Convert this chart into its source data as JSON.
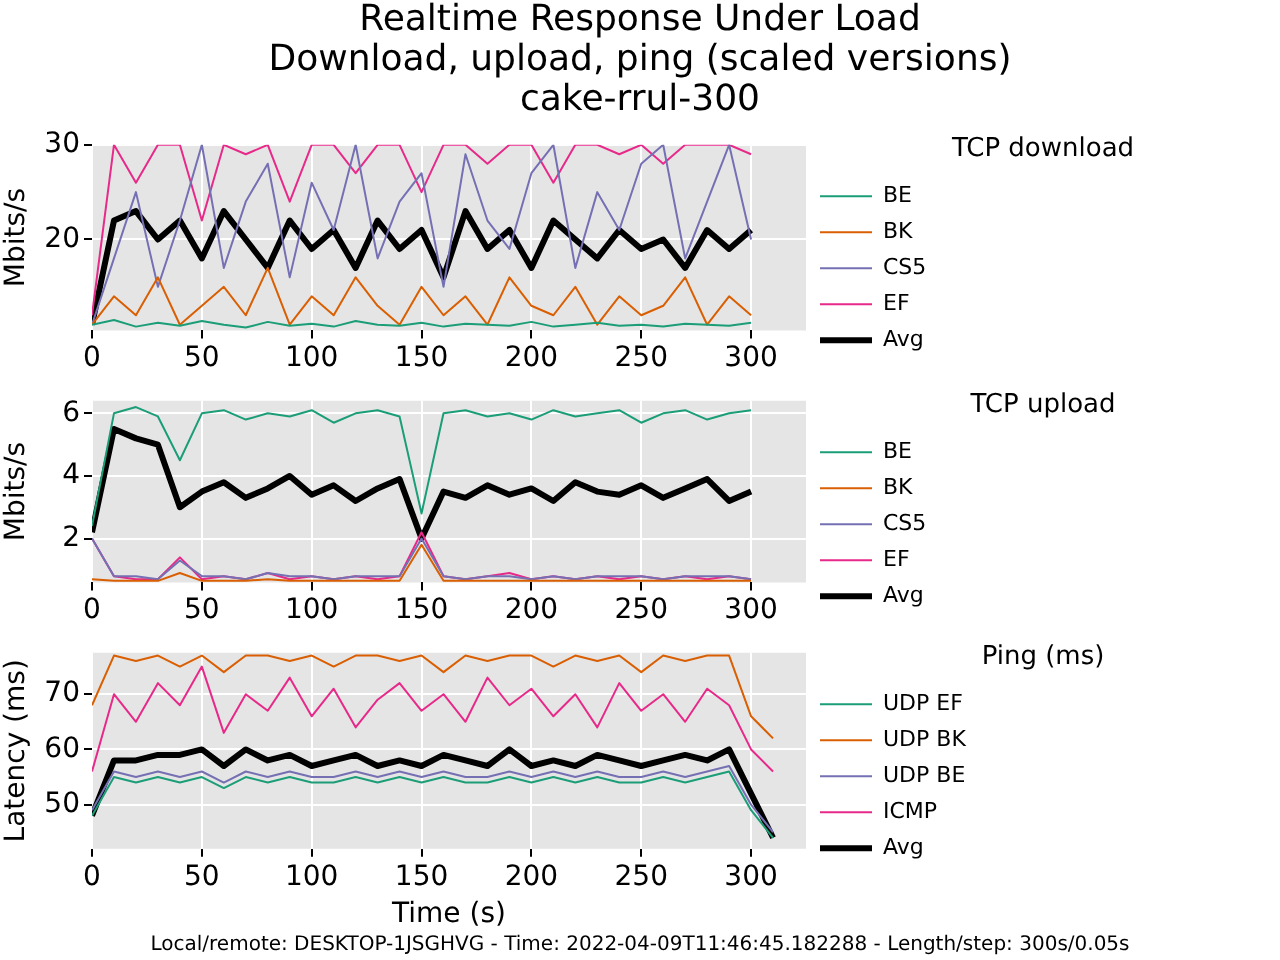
{
  "chart_data": [
    {
      "type": "line",
      "title": "Realtime Response Under Load",
      "subtitle": "Download, upload, ping (scaled versions)\ncake-rrul-300",
      "ylabel": "Mbits/s",
      "legend_title": "TCP download",
      "legend": "right",
      "grid": true,
      "x": [
        0,
        10,
        20,
        30,
        40,
        50,
        60,
        70,
        80,
        90,
        100,
        110,
        120,
        130,
        140,
        150,
        160,
        170,
        180,
        190,
        200,
        210,
        220,
        230,
        240,
        250,
        260,
        270,
        280,
        290,
        300
      ],
      "xlim": [
        0,
        325
      ],
      "xticks": [
        0,
        50,
        100,
        150,
        200,
        250,
        300
      ],
      "ylim": [
        10.4,
        30
      ],
      "yticks": [
        20,
        30
      ],
      "series": [
        {
          "name": "BE",
          "color": "#1b9e77",
          "values": [
            11,
            11.5,
            10.8,
            11.2,
            10.9,
            11.4,
            11,
            10.7,
            11.3,
            10.9,
            11.1,
            10.8,
            11.4,
            11,
            10.9,
            11.2,
            10.8,
            11.1,
            11,
            10.9,
            11.3,
            10.8,
            11,
            11.2,
            10.9,
            11,
            10.8,
            11.1,
            11,
            10.9,
            11.2
          ]
        },
        {
          "name": "BK",
          "color": "#d95f02",
          "values": [
            11,
            14,
            12,
            16,
            11,
            13,
            15,
            12,
            17,
            11,
            14,
            12,
            16,
            13,
            11,
            15,
            12,
            14,
            11,
            16,
            13,
            12,
            15,
            11,
            14,
            12,
            13,
            16,
            11,
            14,
            12
          ]
        },
        {
          "name": "CS5",
          "color": "#7570b3",
          "values": [
            11,
            18,
            25,
            15,
            22,
            30,
            17,
            24,
            28,
            16,
            26,
            21,
            30,
            18,
            24,
            27,
            15,
            29,
            22,
            19,
            27,
            30,
            17,
            25,
            21,
            28,
            30,
            18,
            24,
            30,
            20
          ]
        },
        {
          "name": "EF",
          "color": "#e7298a",
          "values": [
            12,
            30,
            26,
            30,
            30,
            22,
            30,
            29,
            30,
            24,
            30,
            30,
            27,
            30,
            30,
            25,
            30,
            30,
            28,
            30,
            30,
            26,
            30,
            30,
            29,
            30,
            28,
            30,
            30,
            30,
            29
          ]
        },
        {
          "name": "Avg",
          "color": "#000000",
          "values": [
            11,
            22,
            23,
            20,
            22,
            18,
            23,
            20,
            17,
            22,
            19,
            21,
            17,
            22,
            19,
            21,
            16,
            23,
            19,
            21,
            17,
            22,
            20,
            18,
            21,
            19,
            20,
            17,
            21,
            19,
            21
          ]
        }
      ]
    },
    {
      "type": "line",
      "ylabel": "Mbits/s",
      "legend_title": "TCP upload",
      "legend": "right",
      "grid": true,
      "x": [
        0,
        10,
        20,
        30,
        40,
        50,
        60,
        70,
        80,
        90,
        100,
        110,
        120,
        130,
        140,
        150,
        160,
        170,
        180,
        190,
        200,
        210,
        220,
        230,
        240,
        250,
        260,
        270,
        280,
        290,
        300
      ],
      "xlim": [
        0,
        325
      ],
      "xticks": [
        0,
        50,
        100,
        150,
        200,
        250,
        300
      ],
      "ylim": [
        0.6,
        6.4
      ],
      "yticks": [
        2,
        4,
        6
      ],
      "series": [
        {
          "name": "BE",
          "color": "#1b9e77",
          "values": [
            2.4,
            6.0,
            6.2,
            5.9,
            4.5,
            6.0,
            6.1,
            5.8,
            6.0,
            5.9,
            6.1,
            5.7,
            6.0,
            6.1,
            5.9,
            2.8,
            6.0,
            6.1,
            5.9,
            6.0,
            5.8,
            6.1,
            5.9,
            6.0,
            6.1,
            5.7,
            6.0,
            6.1,
            5.8,
            6.0,
            6.1
          ]
        },
        {
          "name": "BK",
          "color": "#d95f02",
          "values": [
            0.7,
            0.65,
            0.65,
            0.65,
            0.9,
            0.65,
            0.65,
            0.65,
            0.7,
            0.65,
            0.65,
            0.65,
            0.65,
            0.65,
            0.65,
            1.8,
            0.65,
            0.65,
            0.65,
            0.65,
            0.65,
            0.65,
            0.65,
            0.65,
            0.65,
            0.65,
            0.65,
            0.65,
            0.65,
            0.65,
            0.65
          ]
        },
        {
          "name": "CS5",
          "color": "#7570b3",
          "values": [
            2.0,
            0.8,
            0.8,
            0.7,
            1.3,
            0.8,
            0.8,
            0.7,
            0.9,
            0.8,
            0.8,
            0.7,
            0.8,
            0.8,
            0.8,
            2.0,
            0.8,
            0.7,
            0.8,
            0.8,
            0.7,
            0.8,
            0.7,
            0.8,
            0.8,
            0.8,
            0.7,
            0.8,
            0.8,
            0.8,
            0.7
          ]
        },
        {
          "name": "EF",
          "color": "#e7298a",
          "values": [
            2.0,
            0.8,
            0.7,
            0.7,
            1.4,
            0.7,
            0.8,
            0.7,
            0.9,
            0.7,
            0.8,
            0.7,
            0.8,
            0.7,
            0.8,
            2.2,
            0.8,
            0.7,
            0.8,
            0.9,
            0.7,
            0.8,
            0.7,
            0.8,
            0.7,
            0.8,
            0.7,
            0.8,
            0.7,
            0.8,
            0.7
          ]
        },
        {
          "name": "Avg",
          "color": "#000000",
          "values": [
            2.2,
            5.5,
            5.2,
            5.0,
            3.0,
            3.5,
            3.8,
            3.3,
            3.6,
            4.0,
            3.4,
            3.7,
            3.2,
            3.6,
            3.9,
            2.0,
            3.5,
            3.3,
            3.7,
            3.4,
            3.6,
            3.2,
            3.8,
            3.5,
            3.4,
            3.7,
            3.3,
            3.6,
            3.9,
            3.2,
            3.5
          ]
        }
      ]
    },
    {
      "type": "line",
      "xlabel": "Time (s)",
      "ylabel": "Latency (ms)",
      "legend_title": "Ping (ms)",
      "legend": "right",
      "grid": true,
      "x": [
        0,
        10,
        20,
        30,
        40,
        50,
        60,
        70,
        80,
        90,
        100,
        110,
        120,
        130,
        140,
        150,
        160,
        170,
        180,
        190,
        200,
        210,
        220,
        230,
        240,
        250,
        260,
        270,
        280,
        290,
        300,
        310
      ],
      "xlim": [
        0,
        325
      ],
      "xticks": [
        0,
        50,
        100,
        150,
        200,
        250,
        300
      ],
      "ylim": [
        42,
        77.5
      ],
      "yticks": [
        50,
        60,
        70
      ],
      "annotations": [
        "Local/remote: DESKTOP-1JSGHVG - Time: 2022-04-09T11:46:45.182288 - Length/step: 300s/0.05s"
      ],
      "series": [
        {
          "name": "UDP EF",
          "color": "#1b9e77",
          "values": [
            48,
            55,
            54,
            55,
            54,
            55,
            53,
            55,
            54,
            55,
            54,
            54,
            55,
            54,
            55,
            54,
            55,
            54,
            54,
            55,
            54,
            55,
            54,
            55,
            54,
            54,
            55,
            54,
            55,
            56,
            49,
            44
          ]
        },
        {
          "name": "UDP BK",
          "color": "#d95f02",
          "values": [
            68,
            77,
            76,
            77,
            75,
            77,
            74,
            77,
            77,
            76,
            77,
            75,
            77,
            77,
            76,
            77,
            74,
            77,
            76,
            77,
            77,
            75,
            77,
            76,
            77,
            74,
            77,
            76,
            77,
            77,
            66,
            62
          ]
        },
        {
          "name": "UDP BE",
          "color": "#7570b3",
          "values": [
            49,
            56,
            55,
            56,
            55,
            56,
            54,
            56,
            55,
            56,
            55,
            55,
            56,
            55,
            56,
            55,
            56,
            55,
            55,
            56,
            55,
            56,
            55,
            56,
            55,
            55,
            56,
            55,
            56,
            57,
            50,
            45
          ]
        },
        {
          "name": "ICMP",
          "color": "#e7298a",
          "values": [
            56,
            70,
            65,
            72,
            68,
            75,
            63,
            70,
            67,
            73,
            66,
            71,
            64,
            69,
            72,
            67,
            70,
            65,
            73,
            68,
            71,
            66,
            70,
            64,
            72,
            67,
            70,
            65,
            71,
            68,
            60,
            56
          ]
        },
        {
          "name": "Avg",
          "color": "#000000",
          "values": [
            48,
            58,
            58,
            59,
            59,
            60,
            57,
            60,
            58,
            59,
            57,
            58,
            59,
            57,
            58,
            57,
            59,
            58,
            57,
            60,
            57,
            58,
            57,
            59,
            58,
            57,
            58,
            59,
            58,
            60,
            52,
            44
          ]
        }
      ]
    }
  ]
}
